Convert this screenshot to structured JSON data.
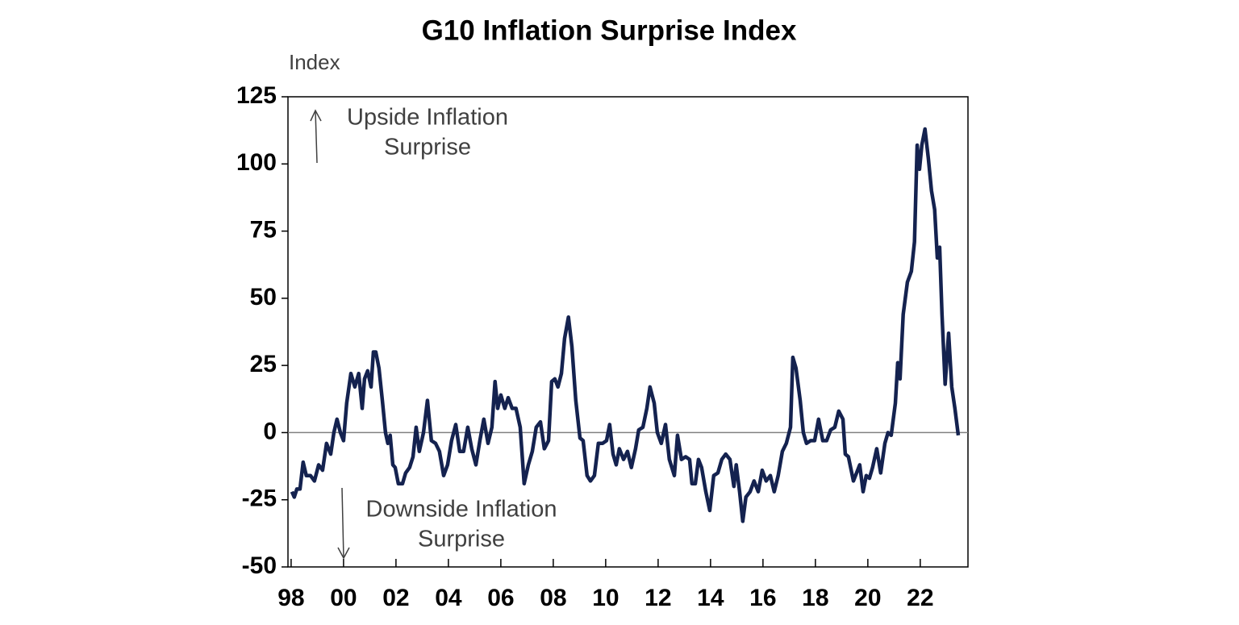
{
  "chart_data": {
    "type": "line",
    "title": "G10 Inflation Surprise Index",
    "y_axis_label": "Index",
    "annotations": [
      [
        "Upside Inflation",
        "Surprise"
      ],
      [
        "Downside Inflation",
        "Surprise"
      ]
    ],
    "xlim": [
      1997.88,
      2023.82
    ],
    "xticks": [
      {
        "value": 1998,
        "label": "98"
      },
      {
        "value": 2000,
        "label": "00"
      },
      {
        "value": 2002,
        "label": "02"
      },
      {
        "value": 2004,
        "label": "04"
      },
      {
        "value": 2006,
        "label": "06"
      },
      {
        "value": 2008,
        "label": "08"
      },
      {
        "value": 2010,
        "label": "10"
      },
      {
        "value": 2012,
        "label": "12"
      },
      {
        "value": 2014,
        "label": "14"
      },
      {
        "value": 2016,
        "label": "16"
      },
      {
        "value": 2018,
        "label": "18"
      },
      {
        "value": 2020,
        "label": "20"
      },
      {
        "value": 2022,
        "label": "22"
      }
    ],
    "ylim": [
      -50,
      125
    ],
    "yticks": [
      -50,
      -25,
      0,
      25,
      50,
      75,
      100,
      125
    ],
    "zero_line": true,
    "x": [
      1998.03,
      1998.12,
      1998.22,
      1998.34,
      1998.46,
      1998.58,
      1998.74,
      1998.89,
      1999.05,
      1999.2,
      1999.35,
      1999.51,
      1999.63,
      1999.75,
      1999.88,
      2000,
      2000.12,
      2000.28,
      2000.43,
      2000.58,
      2000.71,
      2000.8,
      2000.92,
      2001.05,
      2001.14,
      2001.23,
      2001.35,
      2001.48,
      2001.6,
      2001.69,
      2001.78,
      2001.88,
      2001.97,
      2002.09,
      2002.25,
      2002.37,
      2002.52,
      2002.65,
      2002.77,
      2002.89,
      2003.05,
      2003.2,
      2003.35,
      2003.51,
      2003.66,
      2003.82,
      2003.97,
      2004.12,
      2004.28,
      2004.43,
      2004.58,
      2004.74,
      2004.89,
      2005.05,
      2005.2,
      2005.35,
      2005.51,
      2005.66,
      2005.78,
      2005.88,
      2006,
      2006.15,
      2006.28,
      2006.43,
      2006.58,
      2006.74,
      2006.89,
      2007.05,
      2007.2,
      2007.35,
      2007.51,
      2007.66,
      2007.82,
      2007.94,
      2008.06,
      2008.18,
      2008.31,
      2008.43,
      2008.58,
      2008.71,
      2008.86,
      2009.02,
      2009.14,
      2009.29,
      2009.42,
      2009.57,
      2009.72,
      2009.88,
      2010.03,
      2010.15,
      2010.28,
      2010.4,
      2010.52,
      2010.68,
      2010.83,
      2010.98,
      2011.14,
      2011.26,
      2011.42,
      2011.57,
      2011.69,
      2011.85,
      2011.97,
      2012.12,
      2012.28,
      2012.43,
      2012.62,
      2012.74,
      2012.89,
      2013.05,
      2013.2,
      2013.29,
      2013.42,
      2013.54,
      2013.66,
      2013.82,
      2013.97,
      2014.12,
      2014.28,
      2014.43,
      2014.58,
      2014.74,
      2014.89,
      2014.98,
      2015.11,
      2015.23,
      2015.35,
      2015.51,
      2015.66,
      2015.82,
      2015.97,
      2016.12,
      2016.28,
      2016.43,
      2016.58,
      2016.74,
      2016.89,
      2017.05,
      2017.14,
      2017.26,
      2017.42,
      2017.54,
      2017.66,
      2017.82,
      2017.97,
      2018.12,
      2018.28,
      2018.43,
      2018.58,
      2018.74,
      2018.89,
      2019.05,
      2019.14,
      2019.26,
      2019.45,
      2019.57,
      2019.69,
      2019.82,
      2019.94,
      2020.06,
      2020.18,
      2020.34,
      2020.49,
      2020.65,
      2020.77,
      2020.89,
      2021.05,
      2021.14,
      2021.23,
      2021.35,
      2021.51,
      2021.66,
      2021.78,
      2021.88,
      2021.97,
      2022.06,
      2022.18,
      2022.31,
      2022.43,
      2022.55,
      2022.65,
      2022.74,
      2022.83,
      2022.95,
      2023.08,
      2023.2,
      2023.32,
      2023.45
    ],
    "series": [
      {
        "name": "G10 Inflation Surprise Index",
        "color": "#14224f",
        "values": [
          -22,
          -24,
          -21,
          -21,
          -11,
          -16,
          -16,
          -18,
          -12,
          -14,
          -4,
          -8,
          0,
          5,
          0,
          -3,
          11,
          22,
          17,
          22,
          9,
          20,
          23,
          17,
          30,
          30,
          24,
          12,
          0,
          -4,
          -1,
          -12,
          -13,
          -19,
          -19,
          -15,
          -13,
          -9,
          2,
          -7,
          0,
          12,
          -3,
          -4,
          -7,
          -16,
          -12,
          -3,
          3,
          -7,
          -7,
          2,
          -6,
          -12,
          -3,
          5,
          -4,
          2,
          19,
          9,
          14,
          9,
          13,
          9,
          9,
          2,
          -19,
          -12,
          -7,
          2,
          4,
          -6,
          -3,
          19,
          20,
          17,
          22,
          35,
          43,
          32,
          12,
          -2,
          -3,
          -16,
          -18,
          -16,
          -4,
          -4,
          -3,
          3,
          -8,
          -12,
          -6,
          -10,
          -7,
          -13,
          -6,
          1,
          2,
          9,
          17,
          11,
          0,
          -4,
          3,
          -10,
          -16,
          -1,
          -10,
          -9,
          -10,
          -19,
          -19,
          -10,
          -13,
          -22,
          -29,
          -16,
          -15,
          -10,
          -8,
          -10,
          -20,
          -12,
          -22,
          -33,
          -24,
          -22,
          -18,
          -22,
          -14,
          -18,
          -16,
          -22,
          -16,
          -7,
          -4,
          2,
          28,
          24,
          12,
          0,
          -4,
          -3,
          -3,
          5,
          -3,
          -3,
          1,
          2,
          8,
          5,
          -8,
          -9,
          -18,
          -15,
          -12,
          -22,
          -16,
          -17,
          -13,
          -6,
          -15,
          -4,
          0,
          -1,
          11,
          26,
          20,
          44,
          56,
          60,
          71,
          107,
          98,
          107,
          113,
          102,
          90,
          83,
          65,
          69,
          44,
          18,
          37,
          17,
          9,
          -1
        ]
      }
    ]
  }
}
